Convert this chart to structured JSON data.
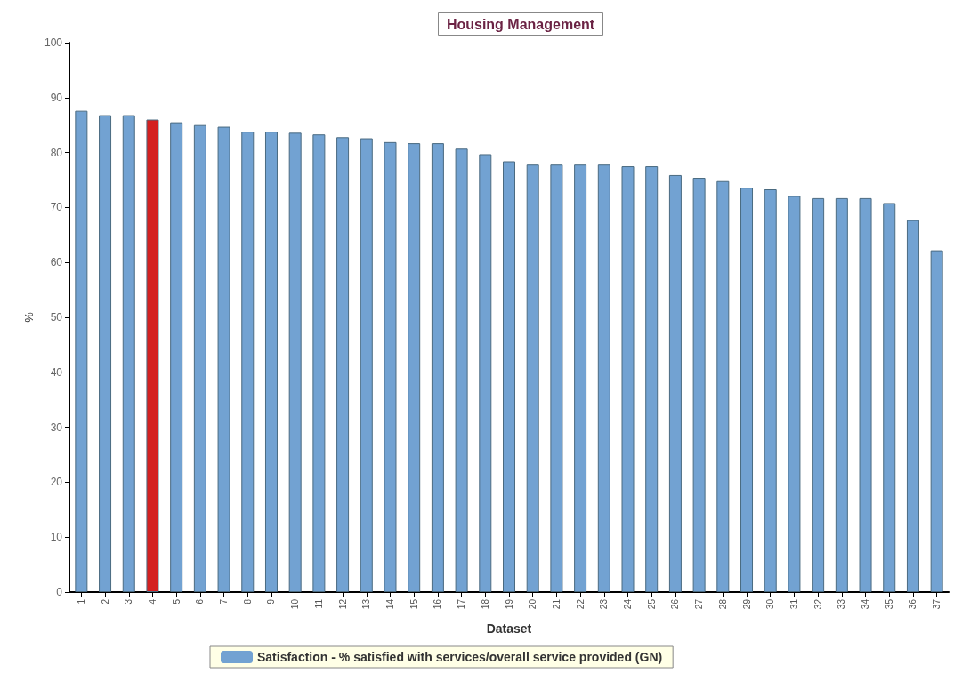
{
  "chart_data": {
    "type": "bar",
    "title": "Housing Management",
    "xlabel": "Dataset",
    "ylabel": "%",
    "categories": [
      "1",
      "2",
      "3",
      "4",
      "5",
      "6",
      "7",
      "8",
      "9",
      "10",
      "11",
      "12",
      "13",
      "14",
      "15",
      "16",
      "17",
      "18",
      "19",
      "20",
      "21",
      "22",
      "23",
      "24",
      "25",
      "26",
      "27",
      "28",
      "29",
      "30",
      "31",
      "32",
      "33",
      "34",
      "35",
      "36",
      "37"
    ],
    "series": [
      {
        "name": "Satisfaction - % satisfied with services/overall service provided (GN)",
        "color": "#72a2d2",
        "colors": [
          "#72a2d2",
          "#72a2d2",
          "#72a2d2",
          "#d42020",
          "#72a2d2",
          "#72a2d2",
          "#72a2d2",
          "#72a2d2",
          "#72a2d2",
          "#72a2d2",
          "#72a2d2",
          "#72a2d2",
          "#72a2d2",
          "#72a2d2",
          "#72a2d2",
          "#72a2d2",
          "#72a2d2",
          "#72a2d2",
          "#72a2d2",
          "#72a2d2",
          "#72a2d2",
          "#72a2d2",
          "#72a2d2",
          "#72a2d2",
          "#72a2d2",
          "#72a2d2",
          "#72a2d2",
          "#72a2d2",
          "#72a2d2",
          "#72a2d2",
          "#72a2d2",
          "#72a2d2",
          "#72a2d2",
          "#72a2d2",
          "#72a2d2",
          "#72a2d2",
          "#72a2d2"
        ],
        "values": [
          87.6,
          86.8,
          86.8,
          86.0,
          85.5,
          85.0,
          84.7,
          83.8,
          83.8,
          83.6,
          83.3,
          82.8,
          82.6,
          81.9,
          81.7,
          81.7,
          80.7,
          79.7,
          78.4,
          77.8,
          77.8,
          77.8,
          77.8,
          77.5,
          77.5,
          75.9,
          75.4,
          74.8,
          73.6,
          73.3,
          72.1,
          71.7,
          71.7,
          71.7,
          70.8,
          67.7,
          62.2
        ]
      }
    ],
    "ylim": [
      0,
      100
    ],
    "yticks": [
      0,
      10,
      20,
      30,
      40,
      50,
      60,
      70,
      80,
      90,
      100
    ],
    "grid": false,
    "legend": "bottom"
  }
}
